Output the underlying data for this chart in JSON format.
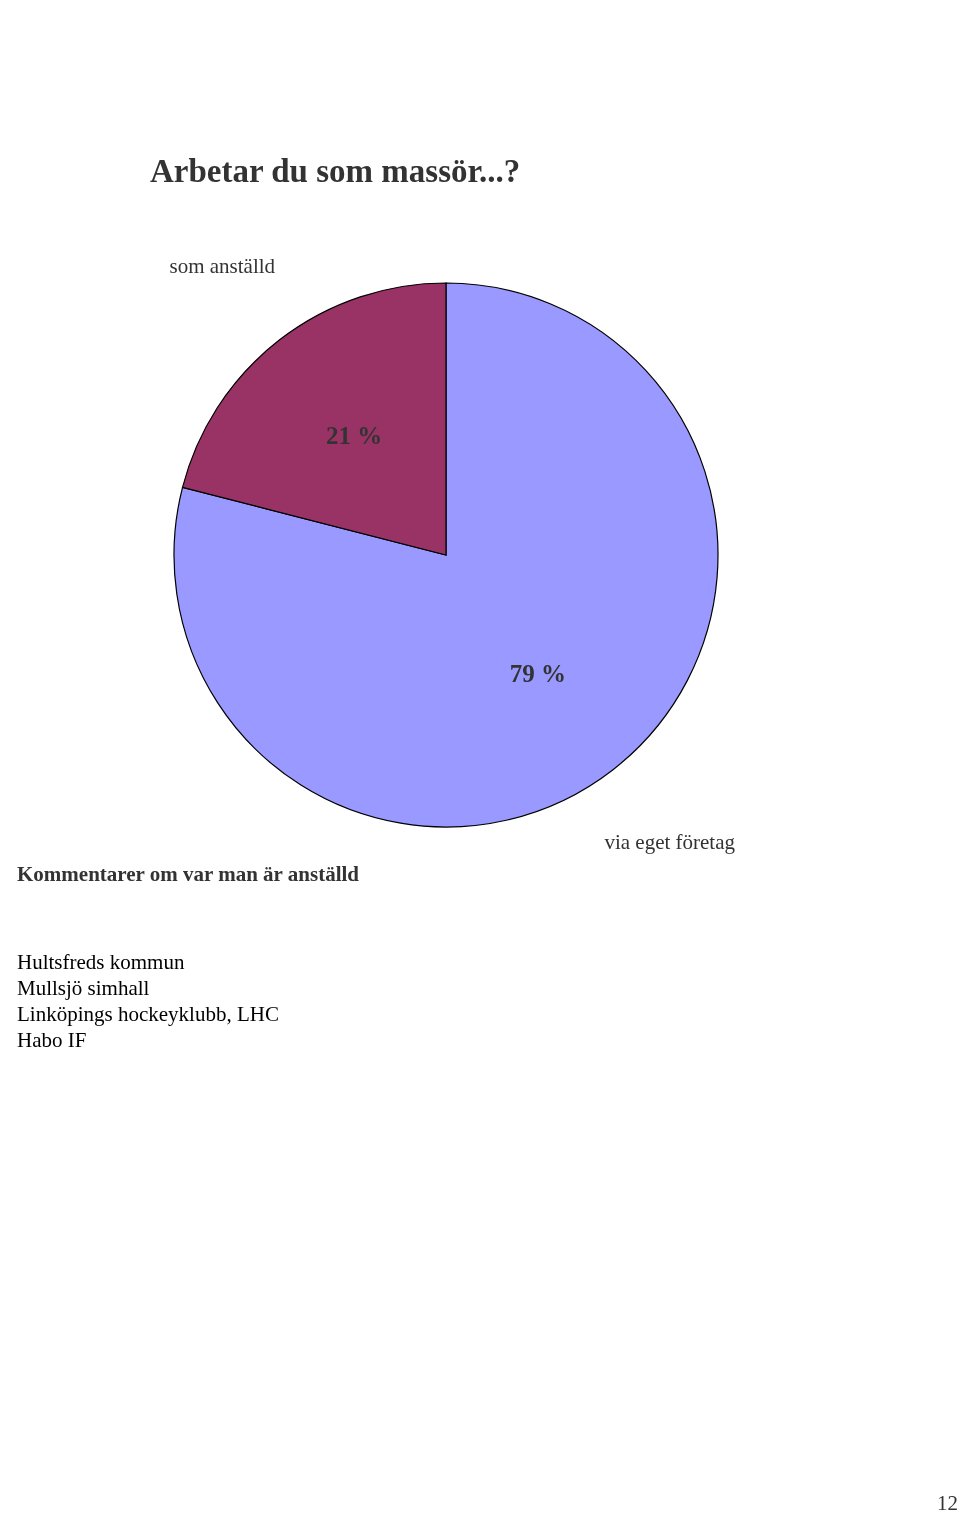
{
  "chart_data": {
    "type": "pie",
    "title": "Arbetar du som massör...?",
    "categories": [
      "via eget företag",
      "som anställd"
    ],
    "values": [
      79,
      21
    ],
    "value_labels": [
      "79 %",
      "21 %"
    ],
    "colors": [
      "#9999ff",
      "#993366"
    ],
    "annotations": [
      "Kommentarer om var man är anställd",
      "Hultsfreds kommun",
      "Mullsjö simhall",
      "Linköpings hockeyklubb, LHC",
      "Habo IF",
      "12"
    ]
  }
}
